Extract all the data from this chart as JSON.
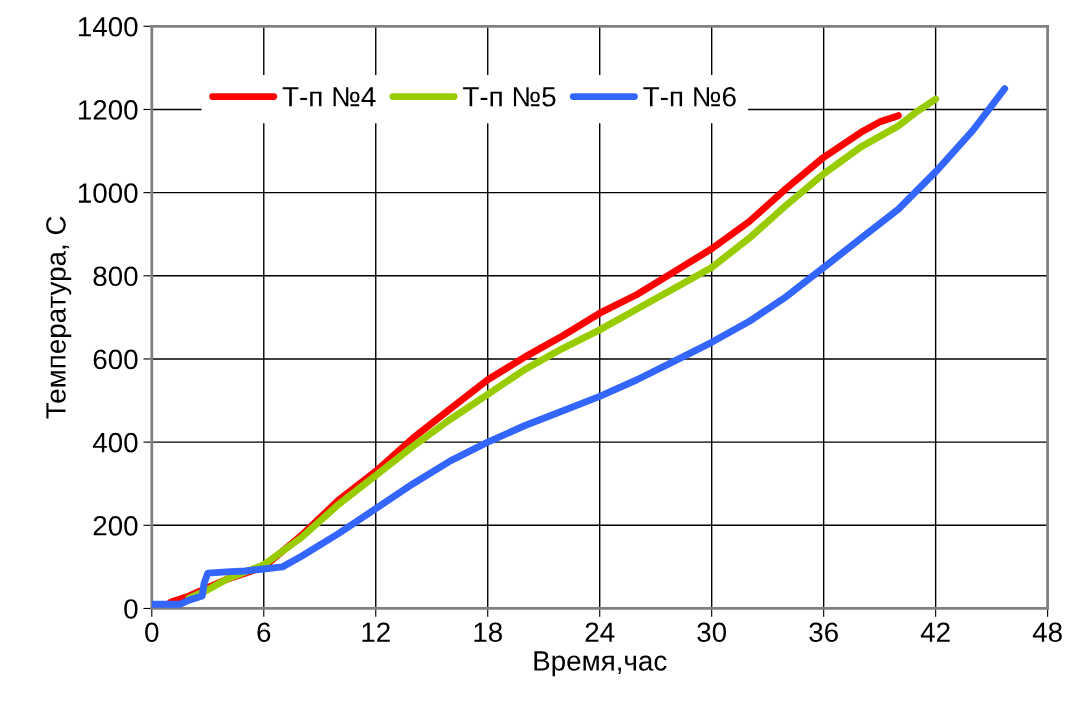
{
  "chart_data": {
    "type": "line",
    "xlabel": "Время,час",
    "ylabel": "Температура, С",
    "xlim": [
      0,
      48
    ],
    "xticks": [
      0,
      6,
      12,
      18,
      24,
      30,
      36,
      42,
      48
    ],
    "ylim": [
      0,
      1400
    ],
    "yticks": [
      0,
      200,
      400,
      600,
      800,
      1000,
      1200,
      1400
    ],
    "grid": true,
    "legend": "top left",
    "marker": "none",
    "line_style": "solid",
    "series": [
      {
        "name": "Т-п №4",
        "color": "#ff0000",
        "x": [
          1,
          2,
          4,
          6,
          8,
          10,
          12,
          14,
          16,
          18,
          20,
          22,
          24,
          26,
          28,
          30,
          32,
          34,
          36,
          38,
          39,
          40
        ],
        "values": [
          15,
          30,
          70,
          100,
          175,
          260,
          330,
          410,
          480,
          550,
          605,
          655,
          710,
          755,
          810,
          865,
          930,
          1010,
          1085,
          1145,
          1170,
          1185
        ]
      },
      {
        "name": "Т-п №5",
        "color": "#99cc00",
        "x": [
          2,
          3,
          4,
          6,
          8,
          10,
          12,
          14,
          16,
          18,
          20,
          22,
          24,
          26,
          28,
          30,
          32,
          34,
          36,
          38,
          40,
          41,
          42
        ],
        "values": [
          25,
          45,
          70,
          105,
          170,
          250,
          320,
          390,
          455,
          515,
          575,
          625,
          670,
          720,
          770,
          820,
          890,
          970,
          1045,
          1110,
          1160,
          1195,
          1225
        ]
      },
      {
        "name": "Т-п №6",
        "color": "#3366ff",
        "x": [
          0,
          1.5,
          2,
          2.7,
          2.8,
          3,
          4,
          5,
          6,
          7,
          8,
          10,
          12,
          14,
          16,
          18,
          20,
          22,
          24,
          26,
          28,
          30,
          32,
          34,
          36,
          38,
          40,
          42,
          44,
          45.7
        ],
        "values": [
          10,
          10,
          20,
          30,
          60,
          85,
          88,
          90,
          95,
          100,
          125,
          180,
          240,
          300,
          355,
          400,
          440,
          475,
          510,
          550,
          595,
          640,
          690,
          750,
          820,
          890,
          960,
          1050,
          1150,
          1250
        ]
      }
    ]
  }
}
